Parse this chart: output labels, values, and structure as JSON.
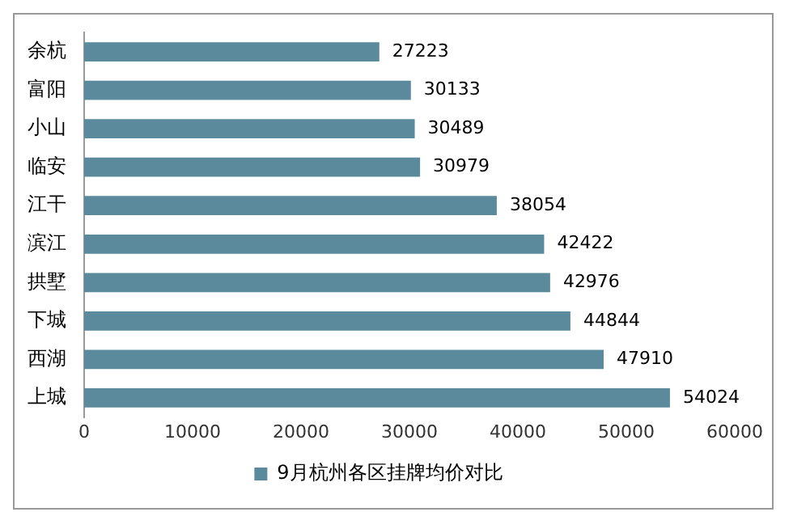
{
  "chart_data": {
    "type": "bar",
    "orientation": "horizontal",
    "categories": [
      "余杭",
      "富阳",
      "小山",
      "临安",
      "江干",
      "滨江",
      "拱墅",
      "下城",
      "西湖",
      "上城"
    ],
    "series": [
      {
        "name": "9月杭州各区挂牌均价对比",
        "color": "#5b8a9c",
        "values": [
          27223,
          30133,
          30489,
          30979,
          38054,
          42422,
          42976,
          44844,
          47910,
          54024
        ]
      }
    ],
    "xlim": [
      0,
      60000
    ],
    "xticks": [
      0,
      10000,
      20000,
      30000,
      40000,
      50000,
      60000
    ],
    "data_labels": true,
    "legend": "bottom",
    "grid": false
  }
}
